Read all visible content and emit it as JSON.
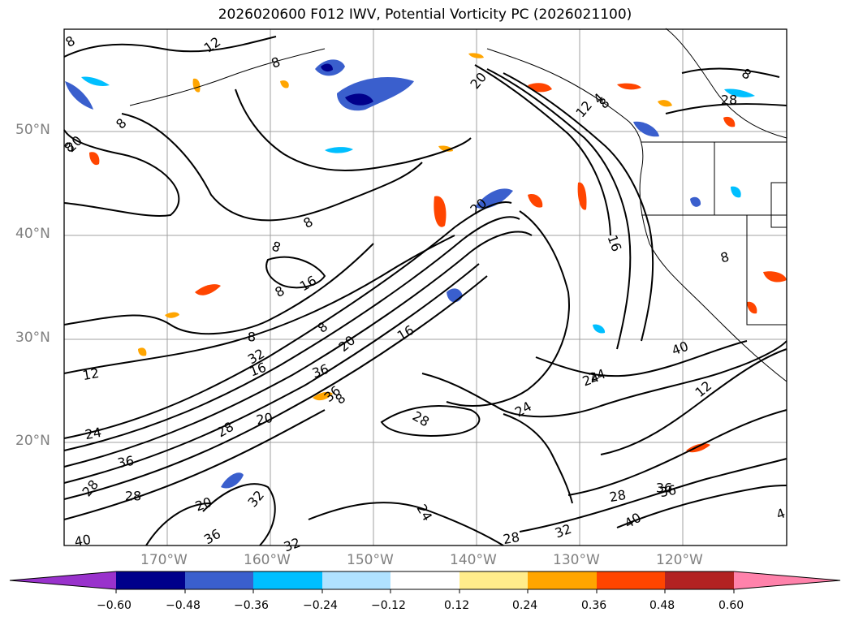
{
  "title": "2026020600 F012 IWV, Potential Vorticity PC (2026021100)",
  "map": {
    "lat_labels": [
      "50°N",
      "40°N",
      "30°N",
      "20°N"
    ],
    "lon_labels": [
      "170°W",
      "160°W",
      "150°W",
      "140°W",
      "130°W",
      "120°W"
    ],
    "contour_labels": [
      "8",
      "12",
      "8",
      "8",
      "8",
      "20",
      "12",
      "4",
      "8",
      "8",
      "8",
      "16",
      "8",
      "8",
      "16",
      "16",
      "20",
      "36",
      "12",
      "32",
      "36",
      "24",
      "24",
      "24",
      "28",
      "28",
      "20",
      "28",
      "36",
      "20",
      "12",
      "24",
      "36",
      "28",
      "32",
      "32",
      "28",
      "28",
      "32",
      "40",
      "36",
      "40",
      "4",
      "8",
      "8",
      "20",
      "24",
      "16",
      "8",
      "20",
      "8",
      "40",
      "36",
      "28"
    ]
  },
  "colorbar": {
    "colors": [
      "#9932cc",
      "#00008b",
      "#3a5fcd",
      "#00bfff",
      "#b0e2ff",
      "#ffffff",
      "#ffec8b",
      "#ffa500",
      "#ff4500",
      "#b22222",
      "#ff82ab"
    ],
    "tick_labels": [
      "−0.60",
      "−0.48",
      "−0.36",
      "−0.24",
      "−0.12",
      "0.12",
      "0.24",
      "0.36",
      "0.48",
      "0.60"
    ]
  }
}
